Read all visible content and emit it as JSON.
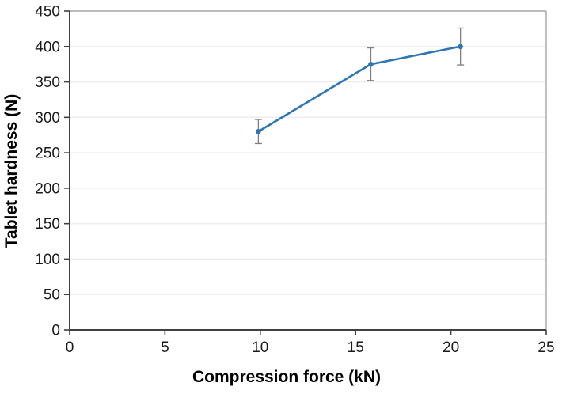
{
  "chart_data": {
    "type": "line",
    "xlabel": "Compression force (kN)",
    "ylabel": "Tablet hardness (N)",
    "xlim": [
      0,
      25
    ],
    "ylim": [
      0,
      450
    ],
    "xticks": [
      0,
      5,
      10,
      15,
      20,
      25
    ],
    "yticks": [
      0,
      50,
      100,
      150,
      200,
      250,
      300,
      350,
      400,
      450
    ],
    "grid": "horizontal-major-only",
    "legend": "none",
    "series": [
      {
        "marker": "circle",
        "color": "#2E75B6",
        "points": [
          {
            "x": 9.9,
            "y": 280,
            "y_err": 17
          },
          {
            "x": 15.8,
            "y": 375,
            "y_err": 23
          },
          {
            "x": 20.5,
            "y": 400,
            "y_err": 26
          }
        ]
      }
    ],
    "colors": {
      "line": "#2E75B6",
      "marker": "#2E75B6",
      "error_bar": "#7F7F7F",
      "gridline": "#ECECEC",
      "axis": "#404040",
      "plot_border": "#A6A6A6",
      "tick_label": "#1A1A1A",
      "axis_title": "#000000",
      "background": "#FFFFFF"
    }
  }
}
